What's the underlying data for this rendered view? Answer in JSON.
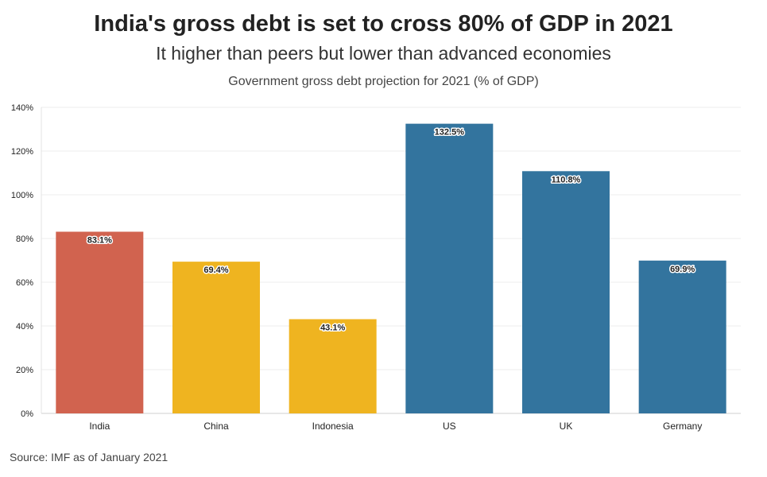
{
  "header": {
    "title": "India's gross debt is set to cross 80% of GDP in 2021",
    "subtitle": "It higher than peers but lower than advanced economies",
    "chart_label": "Government gross debt projection for 2021 (% of GDP)"
  },
  "footer": {
    "source": "Source: IMF as of January 2021"
  },
  "colors": {
    "india": "#d1634f",
    "peer": "#efb420",
    "advanced": "#33749e",
    "grid": "#ececec"
  },
  "chart_data": {
    "type": "bar",
    "title": "Government gross debt projection for 2021 (% of GDP)",
    "xlabel": "",
    "ylabel": "",
    "ylim": [
      0,
      140
    ],
    "yticks": [
      0,
      20,
      40,
      60,
      80,
      100,
      120,
      140
    ],
    "ytick_labels": [
      "0%",
      "20%",
      "40%",
      "60%",
      "80%",
      "100%",
      "120%",
      "140%"
    ],
    "categories": [
      "India",
      "China",
      "Indonesia",
      "US",
      "UK",
      "Germany"
    ],
    "values": [
      83.1,
      69.4,
      43.1,
      132.5,
      110.8,
      69.9
    ],
    "data_labels": [
      "83.1%",
      "69.4%",
      "43.1%",
      "132.5%",
      "110.8%",
      "69.9%"
    ],
    "bar_colors": [
      "#d1634f",
      "#efb420",
      "#efb420",
      "#33749e",
      "#33749e",
      "#33749e"
    ],
    "grid": true,
    "legend": "none"
  }
}
